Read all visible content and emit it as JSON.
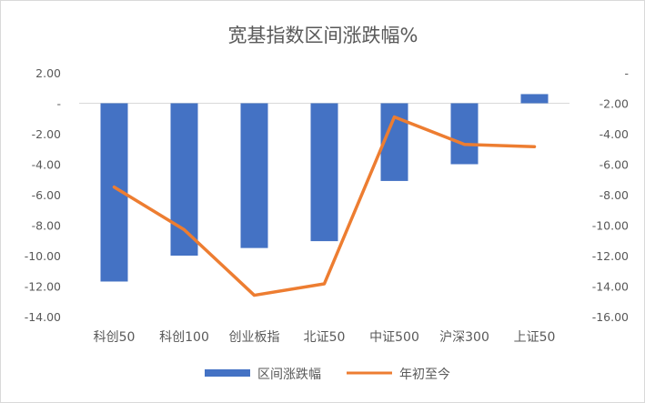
{
  "chart_data": {
    "type": "bar+line",
    "title": "宽基指数区间涨跌幅%",
    "categories": [
      "科创50",
      "科创100",
      "创业板指",
      "北证50",
      "中证500",
      "沪深300",
      "上证50"
    ],
    "series": [
      {
        "name": "区间涨跌幅",
        "type": "bar",
        "axis": "left",
        "color": "#4472C4",
        "values": [
          -11.7,
          -10.0,
          -9.5,
          -9.05,
          -5.1,
          -4.0,
          0.6
        ]
      },
      {
        "name": "年初至今",
        "type": "line",
        "axis": "right",
        "color": "#ED7D31",
        "values": [
          -7.5,
          -10.3,
          -14.6,
          -13.85,
          -2.9,
          -4.7,
          -4.85
        ]
      }
    ],
    "left_axis": {
      "ylim": [
        -14,
        2
      ],
      "ticks": [
        2,
        0,
        -2,
        -4,
        -6,
        -8,
        -10,
        -12,
        -14
      ],
      "tick_labels": [
        "2.00",
        "-",
        "-2.00",
        "-4.00",
        "-6.00",
        "-8.00",
        "-10.00",
        "-12.00",
        "-14.00"
      ]
    },
    "right_axis": {
      "ylim": [
        -16,
        0
      ],
      "ticks": [
        0,
        -2,
        -4,
        -6,
        -8,
        -10,
        -12,
        -14,
        -16
      ],
      "tick_labels": [
        "-",
        "-2.00",
        "-4.00",
        "-6.00",
        "-8.00",
        "-10.00",
        "-12.00",
        "-14.00",
        "-16.00"
      ]
    },
    "grid": false,
    "legend_position": "bottom"
  }
}
